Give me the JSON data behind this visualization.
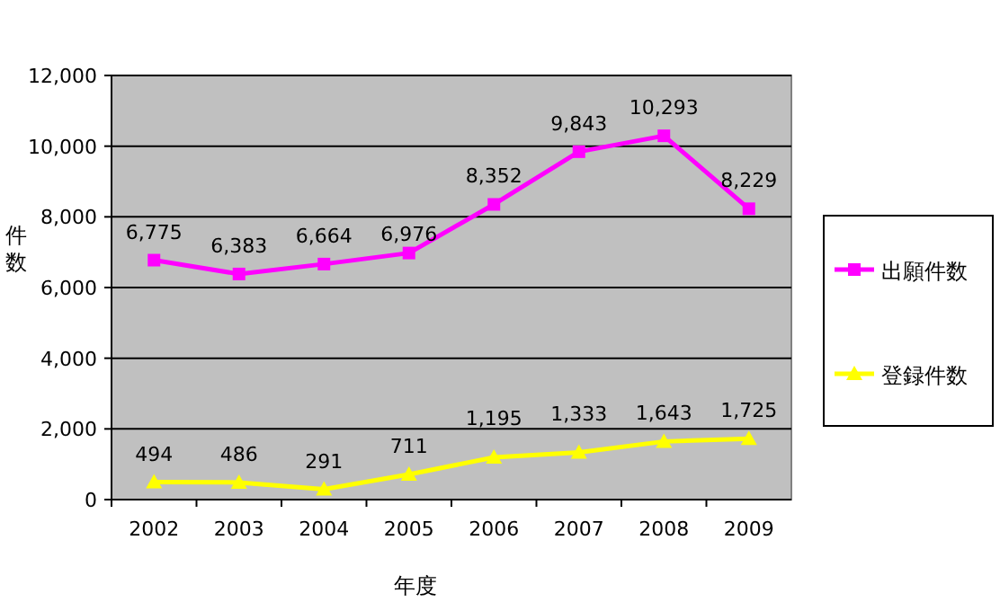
{
  "chart_data": {
    "type": "line",
    "xlabel": "年度",
    "ylabel": "件数",
    "categories": [
      "2002",
      "2003",
      "2004",
      "2005",
      "2006",
      "2007",
      "2008",
      "2009"
    ],
    "series": [
      {
        "name": "出願件数",
        "color": "#ff00ff",
        "marker": "square",
        "values": [
          6775,
          6383,
          6664,
          6976,
          8352,
          9843,
          10293,
          8229
        ],
        "value_labels": [
          "6,775",
          "6,383",
          "6,664",
          "6,976",
          "8,352",
          "9,843",
          "10,293",
          "8,229"
        ]
      },
      {
        "name": "登録件数",
        "color": "#ffff00",
        "marker": "triangle",
        "values": [
          494,
          486,
          291,
          711,
          1195,
          1333,
          1643,
          1725
        ],
        "value_labels": [
          "494",
          "486",
          "291",
          "711",
          "1,195",
          "1,333",
          "1,643",
          "1,725"
        ]
      }
    ],
    "ylim": [
      0,
      12000
    ],
    "yticks": [
      {
        "value": 0,
        "label": "0"
      },
      {
        "value": 2000,
        "label": "2,000"
      },
      {
        "value": 4000,
        "label": "4,000"
      },
      {
        "value": 6000,
        "label": "6,000"
      },
      {
        "value": 8000,
        "label": "8,000"
      },
      {
        "value": 10000,
        "label": "10,000"
      },
      {
        "value": 12000,
        "label": "12,000"
      }
    ],
    "grid": "y",
    "legend": "right"
  }
}
